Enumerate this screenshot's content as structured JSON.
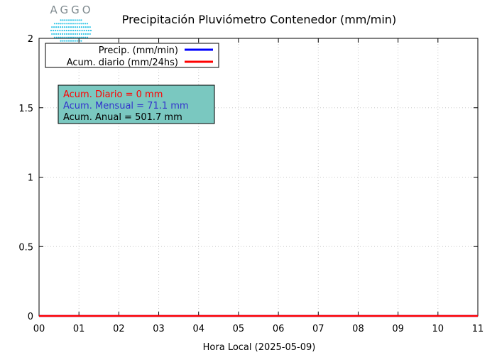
{
  "logo": {
    "text": "AGGO",
    "color": "#7f8a8f",
    "dots_color": "#2ec4e6"
  },
  "chart_data": {
    "type": "line",
    "title": "Precipitación Pluviómetro Contenedor (mm/min)",
    "xlabel": "Hora Local (2025-05-09)",
    "ylabel": "",
    "xlim": [
      0,
      11
    ],
    "ylim": [
      0,
      2
    ],
    "x_ticks": [
      0,
      1,
      2,
      3,
      4,
      5,
      6,
      7,
      8,
      9,
      10,
      11
    ],
    "x_tick_labels": [
      "00",
      "01",
      "02",
      "03",
      "04",
      "05",
      "06",
      "07",
      "08",
      "09",
      "10",
      "11"
    ],
    "y_ticks": [
      0,
      0.5,
      1,
      1.5,
      2
    ],
    "y_tick_labels": [
      "0",
      "0.5",
      "1",
      "1.5",
      "2"
    ],
    "grid": true,
    "legend_position": "top-left",
    "series": [
      {
        "name": "Precip. (mm/min)",
        "color": "#0000ff",
        "x": [
          0,
          11
        ],
        "y": [
          0,
          0
        ]
      },
      {
        "name": "Acum. diario (mm/24hs)",
        "color": "#ff0000",
        "x": [
          0,
          11
        ],
        "y": [
          0,
          0
        ]
      }
    ],
    "annotation_box": {
      "background": "#7ac8c0",
      "lines": [
        {
          "text": "Acum. Diario = 0 mm",
          "color": "#ff0000"
        },
        {
          "text": "Acum. Mensual = 71.1 mm",
          "color": "#3333cc"
        },
        {
          "text": "Acum. Anual = 501.7 mm",
          "color": "#000000"
        }
      ]
    }
  }
}
